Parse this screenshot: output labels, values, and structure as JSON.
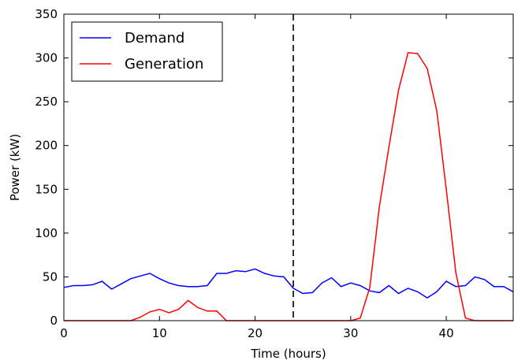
{
  "chart_data": {
    "type": "line",
    "title": "",
    "xlabel": "Time (hours)",
    "ylabel": "Power (kW)",
    "xlim": [
      0,
      47
    ],
    "ylim": [
      0,
      350
    ],
    "xticks": [
      0,
      10,
      20,
      30,
      40
    ],
    "yticks": [
      0,
      50,
      100,
      150,
      200,
      250,
      300,
      350
    ],
    "grid": false,
    "legend_position": "top-left",
    "vline": {
      "x": 24,
      "style": "dashed",
      "color": "#000000"
    },
    "x": [
      0,
      1,
      2,
      3,
      4,
      5,
      6,
      7,
      8,
      9,
      10,
      11,
      12,
      13,
      14,
      15,
      16,
      17,
      18,
      19,
      20,
      21,
      22,
      23,
      24,
      25,
      26,
      27,
      28,
      29,
      30,
      31,
      32,
      33,
      34,
      35,
      36,
      37,
      38,
      39,
      40,
      41,
      42,
      43,
      44,
      45,
      46,
      47
    ],
    "series": [
      {
        "name": "Demand",
        "color": "#0000ff",
        "values": [
          38,
          40,
          40,
          41,
          45,
          36,
          42,
          48,
          51,
          54,
          48,
          43,
          40,
          39,
          39,
          40,
          54,
          54,
          57,
          56,
          59,
          54,
          51,
          50,
          37,
          31,
          32,
          43,
          49,
          39,
          43,
          40,
          34,
          32,
          40,
          31,
          37,
          33,
          26,
          33,
          45,
          39,
          40,
          50,
          47,
          39,
          39,
          33
        ]
      },
      {
        "name": "Generation",
        "color": "#ff0000",
        "values": [
          0,
          0,
          0,
          0,
          0,
          0,
          0,
          0,
          4,
          10,
          13,
          9,
          13,
          23,
          15,
          11,
          11,
          0,
          0,
          0,
          0,
          0,
          0,
          0,
          0,
          0,
          0,
          0,
          0,
          0,
          0,
          3,
          38,
          130,
          198,
          263,
          306,
          305,
          288,
          240,
          150,
          55,
          3,
          0,
          0,
          0,
          0,
          0
        ]
      }
    ]
  }
}
